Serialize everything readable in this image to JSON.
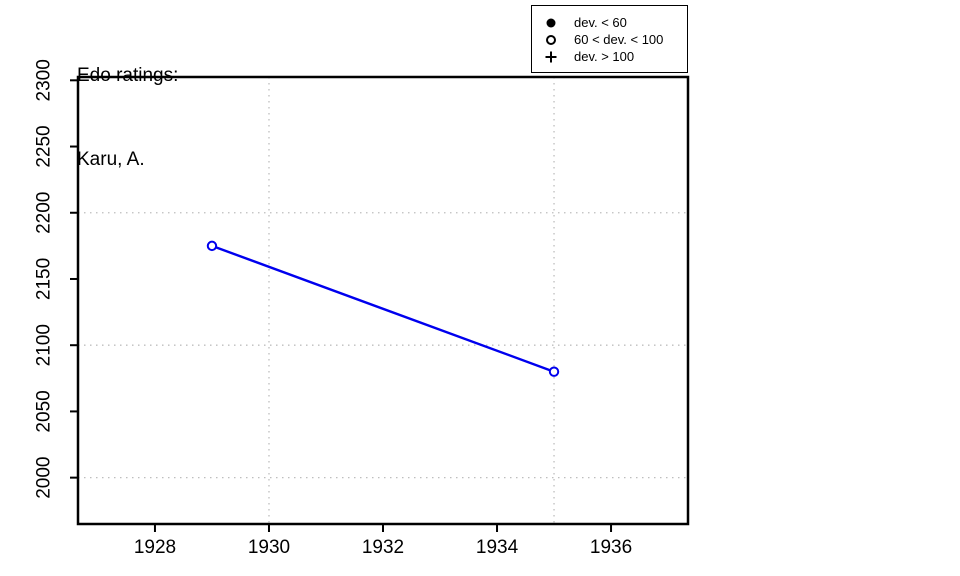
{
  "title": {
    "line1": "Edo ratings:",
    "line2": "Karu, A."
  },
  "legend": {
    "position": "top-right",
    "items": [
      {
        "symbol": "filled-circle",
        "label": "dev. < 60"
      },
      {
        "symbol": "open-circle",
        "label": "60 < dev. < 100"
      },
      {
        "symbol": "plus",
        "label": "dev. > 100"
      }
    ]
  },
  "chart_data": {
    "type": "line",
    "title": "Edo ratings: Karu, A.",
    "xlabel": "",
    "ylabel": "",
    "series": [
      {
        "name": "Karu, A.",
        "symbol": "open-circle",
        "dev_class": "60 < dev. < 100",
        "points": [
          {
            "year": 1929,
            "rating": 2175
          },
          {
            "year": 1935,
            "rating": 2080
          }
        ]
      }
    ],
    "x_ticks": [
      1928,
      1930,
      1932,
      1934,
      1936
    ],
    "y_ticks": [
      2000,
      2050,
      2100,
      2150,
      2200,
      2250,
      2300
    ],
    "x_range": [
      1926.65,
      1937.35
    ],
    "y_range": [
      1965,
      2302.5
    ],
    "x_gridlines": [
      1930,
      1935
    ],
    "y_gridlines": [
      2000,
      2100,
      2200
    ],
    "grid_on": true,
    "grid_style": "dotted",
    "grid_color": "#BEBEBE",
    "line_color": "#0000EE",
    "axis_color": "#000000",
    "legend_position": "top-right"
  }
}
